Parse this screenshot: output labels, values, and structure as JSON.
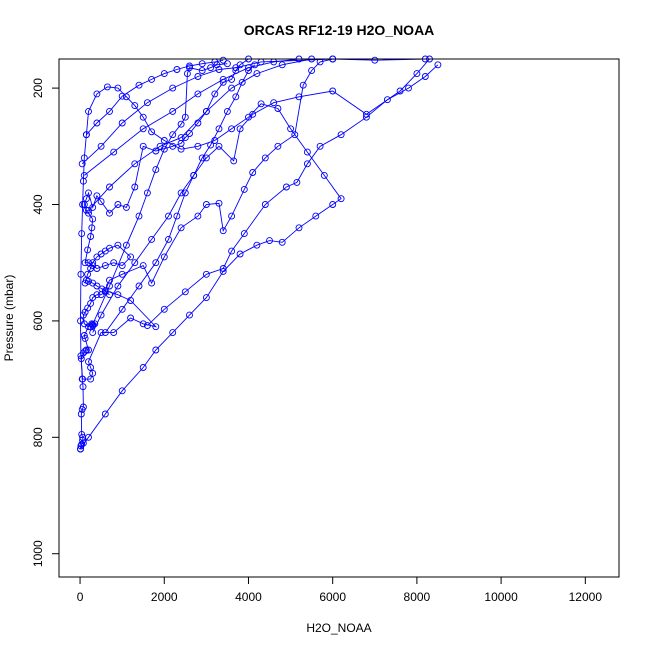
{
  "chart_data": {
    "type": "line",
    "title": "ORCAS RF12-19 H2O_NOAA",
    "xlabel": "H2O_NOAA",
    "ylabel": "Pressure (mbar)",
    "xlim": [
      -500,
      12800
    ],
    "ylim": [
      1040,
      150
    ],
    "x_ticks": [
      0,
      2000,
      4000,
      6000,
      8000,
      10000,
      12000
    ],
    "y_ticks": [
      200,
      400,
      600,
      800,
      1000
    ],
    "x_tick_labels": [
      "0",
      "2000",
      "4000",
      "6000",
      "8000",
      "10000",
      "12000"
    ],
    "y_tick_labels": [
      "200",
      "400",
      "600",
      "800",
      "1000"
    ],
    "y_reversed": true,
    "grid": false,
    "marker": "open-circle",
    "series": [
      {
        "color": "#0000ff",
        "points": [
          [
            10,
            820
          ],
          [
            20,
            815
          ],
          [
            40,
            812
          ],
          [
            60,
            805
          ],
          [
            80,
            810
          ],
          [
            60,
            800
          ],
          [
            40,
            795
          ],
          [
            30,
            760
          ],
          [
            50,
            752
          ],
          [
            80,
            748
          ],
          [
            70,
            713
          ],
          [
            50,
            700
          ],
          [
            30,
            665
          ],
          [
            80,
            655
          ],
          [
            120,
            652
          ],
          [
            150,
            650
          ],
          [
            200,
            650
          ],
          [
            120,
            630
          ],
          [
            100,
            625
          ],
          [
            200,
            610
          ],
          [
            280,
            605
          ],
          [
            350,
            605
          ],
          [
            300,
            608
          ],
          [
            250,
            610
          ],
          [
            100,
            605
          ],
          [
            80,
            590
          ],
          [
            120,
            585
          ],
          [
            180,
            578
          ],
          [
            250,
            570
          ],
          [
            300,
            560
          ],
          [
            400,
            555
          ],
          [
            500,
            555
          ],
          [
            600,
            550
          ],
          [
            700,
            555
          ],
          [
            520,
            545
          ],
          [
            400,
            540
          ],
          [
            300,
            535
          ],
          [
            200,
            532
          ],
          [
            150,
            530
          ],
          [
            120,
            535
          ],
          [
            180,
            520
          ],
          [
            250,
            510
          ],
          [
            300,
            500
          ],
          [
            400,
            490
          ],
          [
            500,
            485
          ],
          [
            600,
            480
          ],
          [
            700,
            475
          ],
          [
            900,
            470
          ],
          [
            1200,
            490
          ],
          [
            1000,
            505
          ],
          [
            800,
            500
          ],
          [
            600,
            505
          ],
          [
            400,
            510
          ],
          [
            300,
            505
          ],
          [
            200,
            500
          ],
          [
            120,
            500
          ],
          [
            180,
            478
          ],
          [
            250,
            455
          ],
          [
            280,
            440
          ],
          [
            300,
            425
          ],
          [
            200,
            415
          ],
          [
            150,
            410
          ],
          [
            100,
            400
          ],
          [
            150,
            390
          ],
          [
            200,
            380
          ],
          [
            300,
            405
          ],
          [
            400,
            385
          ],
          [
            500,
            395
          ],
          [
            700,
            415
          ],
          [
            900,
            400
          ],
          [
            1100,
            405
          ],
          [
            1300,
            370
          ],
          [
            1500,
            300
          ],
          [
            1800,
            308
          ],
          [
            2200,
            300
          ],
          [
            2400,
            295
          ],
          [
            2500,
            285
          ],
          [
            2600,
            278
          ],
          [
            2800,
            260
          ],
          [
            3000,
            240
          ],
          [
            3200,
            210
          ],
          [
            3400,
            190
          ],
          [
            3600,
            185
          ],
          [
            3700,
            170
          ],
          [
            3800,
            160
          ],
          [
            4000,
            150
          ]
        ]
      },
      {
        "color": "#0000ff",
        "points": [
          [
            10,
            820
          ],
          [
            200,
            800
          ],
          [
            600,
            760
          ],
          [
            1000,
            720
          ],
          [
            1500,
            680
          ],
          [
            1800,
            650
          ],
          [
            2200,
            620
          ],
          [
            2600,
            590
          ],
          [
            3000,
            560
          ],
          [
            3400,
            515
          ],
          [
            3800,
            485
          ],
          [
            4200,
            470
          ],
          [
            4500,
            462
          ],
          [
            4800,
            465
          ],
          [
            5200,
            440
          ],
          [
            5600,
            420
          ],
          [
            6000,
            400
          ],
          [
            6200,
            390
          ],
          [
            5800,
            350
          ],
          [
            5400,
            310
          ],
          [
            5000,
            270
          ],
          [
            4700,
            235
          ],
          [
            4300,
            227
          ],
          [
            4000,
            250
          ],
          [
            3600,
            270
          ],
          [
            3200,
            290
          ],
          [
            2800,
            300
          ],
          [
            2400,
            305
          ],
          [
            2000,
            290
          ],
          [
            1700,
            275
          ],
          [
            1500,
            250
          ],
          [
            1300,
            230
          ],
          [
            1100,
            215
          ],
          [
            900,
            200
          ],
          [
            650,
            198
          ],
          [
            400,
            210
          ],
          [
            200,
            240
          ],
          [
            150,
            280
          ],
          [
            100,
            320
          ],
          [
            80,
            360
          ],
          [
            60,
            400
          ],
          [
            40,
            450
          ],
          [
            20,
            520
          ],
          [
            10,
            600
          ],
          [
            20,
            660
          ],
          [
            60,
            700
          ],
          [
            250,
            700
          ],
          [
            300,
            690
          ],
          [
            250,
            680
          ],
          [
            200,
            670
          ],
          [
            500,
            620
          ],
          [
            800,
            620
          ],
          [
            1200,
            595
          ],
          [
            1500,
            605
          ],
          [
            1800,
            610
          ],
          [
            1200,
            565
          ],
          [
            900,
            555
          ],
          [
            600,
            548
          ],
          [
            700,
            530
          ],
          [
            1000,
            520
          ],
          [
            1500,
            505
          ],
          [
            1700,
            535
          ],
          [
            2000,
            490
          ],
          [
            2400,
            440
          ],
          [
            2800,
            420
          ],
          [
            3000,
            400
          ],
          [
            3300,
            398
          ],
          [
            3400,
            445
          ],
          [
            3600,
            420
          ],
          [
            3900,
            374
          ],
          [
            4100,
            345
          ],
          [
            4400,
            320
          ],
          [
            4700,
            300
          ],
          [
            5100,
            280
          ],
          [
            5300,
            195
          ],
          [
            5500,
            170
          ],
          [
            5700,
            155
          ],
          [
            6000,
            150
          ]
        ]
      },
      {
        "color": "#0000ff",
        "points": [
          [
            300,
            620
          ],
          [
            500,
            590
          ],
          [
            900,
            540
          ],
          [
            1300,
            500
          ],
          [
            1700,
            460
          ],
          [
            2100,
            420
          ],
          [
            2400,
            380
          ],
          [
            2700,
            350
          ],
          [
            3000,
            320
          ],
          [
            3300,
            300
          ],
          [
            3650,
            325
          ],
          [
            3800,
            270
          ],
          [
            4100,
            245
          ],
          [
            4600,
            225
          ],
          [
            5200,
            215
          ],
          [
            6000,
            205
          ],
          [
            6800,
            245
          ],
          [
            7600,
            205
          ],
          [
            8000,
            175
          ],
          [
            8300,
            150
          ]
        ]
      },
      {
        "color": "#0000ff",
        "points": [
          [
            150,
            280
          ],
          [
            400,
            260
          ],
          [
            700,
            240
          ],
          [
            1000,
            214
          ],
          [
            1400,
            195
          ],
          [
            1700,
            185
          ],
          [
            2000,
            175
          ],
          [
            2300,
            168
          ],
          [
            2600,
            162
          ],
          [
            2900,
            158
          ],
          [
            3200,
            155
          ],
          [
            3400,
            152
          ]
        ]
      },
      {
        "color": "#0000ff",
        "points": [
          [
            100,
            350
          ],
          [
            800,
            310
          ],
          [
            1500,
            270
          ],
          [
            2200,
            240
          ],
          [
            2800,
            210
          ],
          [
            3400,
            185
          ],
          [
            4000,
            165
          ],
          [
            4600,
            155
          ],
          [
            5200,
            150
          ]
        ]
      },
      {
        "color": "#0000ff",
        "points": [
          [
            200,
            410
          ],
          [
            700,
            370
          ],
          [
            1300,
            330
          ],
          [
            1900,
            300
          ],
          [
            2400,
            285
          ],
          [
            3000,
            240
          ],
          [
            3600,
            200
          ],
          [
            4200,
            175
          ],
          [
            4800,
            160
          ],
          [
            5500,
            150
          ]
        ]
      },
      {
        "color": "#0000ff",
        "points": [
          [
            50,
            330
          ],
          [
            500,
            300
          ],
          [
            1000,
            260
          ],
          [
            1600,
            225
          ],
          [
            2200,
            200
          ],
          [
            2800,
            180
          ],
          [
            3300,
            168
          ],
          [
            3700,
            165
          ],
          [
            4300,
            155
          ],
          [
            6000,
            150
          ],
          [
            7000,
            152
          ],
          [
            8200,
            150
          ]
        ]
      },
      {
        "color": "#0000ff",
        "points": [
          [
            600,
            620
          ],
          [
            1000,
            580
          ],
          [
            1400,
            540
          ],
          [
            1800,
            500
          ],
          [
            2100,
            460
          ],
          [
            2300,
            420
          ],
          [
            2500,
            380
          ],
          [
            2700,
            350
          ],
          [
            2900,
            320
          ],
          [
            3100,
            298
          ],
          [
            3300,
            270
          ],
          [
            3500,
            240
          ],
          [
            3700,
            215
          ],
          [
            3850,
            190
          ],
          [
            4000,
            170
          ],
          [
            4150,
            160
          ]
        ]
      },
      {
        "color": "#0000ff",
        "points": [
          [
            1600,
            608
          ],
          [
            2000,
            580
          ],
          [
            2500,
            550
          ],
          [
            3000,
            520
          ],
          [
            3400,
            510
          ],
          [
            3600,
            480
          ],
          [
            3900,
            450
          ],
          [
            4400,
            400
          ],
          [
            4900,
            370
          ],
          [
            5150,
            362
          ],
          [
            5400,
            330
          ],
          [
            5700,
            300
          ],
          [
            6200,
            280
          ],
          [
            6800,
            250
          ],
          [
            7300,
            220
          ],
          [
            7800,
            200
          ],
          [
            8200,
            180
          ],
          [
            8500,
            160
          ]
        ]
      },
      {
        "color": "#0000ff",
        "points": [
          [
            300,
            606
          ],
          [
            700,
            540
          ],
          [
            1100,
            470
          ],
          [
            1400,
            420
          ],
          [
            1600,
            380
          ],
          [
            1800,
            340
          ],
          [
            2000,
            305
          ],
          [
            2200,
            280
          ],
          [
            2400,
            262
          ],
          [
            2500,
            250
          ],
          [
            2550,
            175
          ],
          [
            2600,
            165
          ],
          [
            2900,
            170
          ],
          [
            3100,
            165
          ],
          [
            3250,
            160
          ],
          [
            3500,
            158
          ]
        ]
      }
    ]
  }
}
